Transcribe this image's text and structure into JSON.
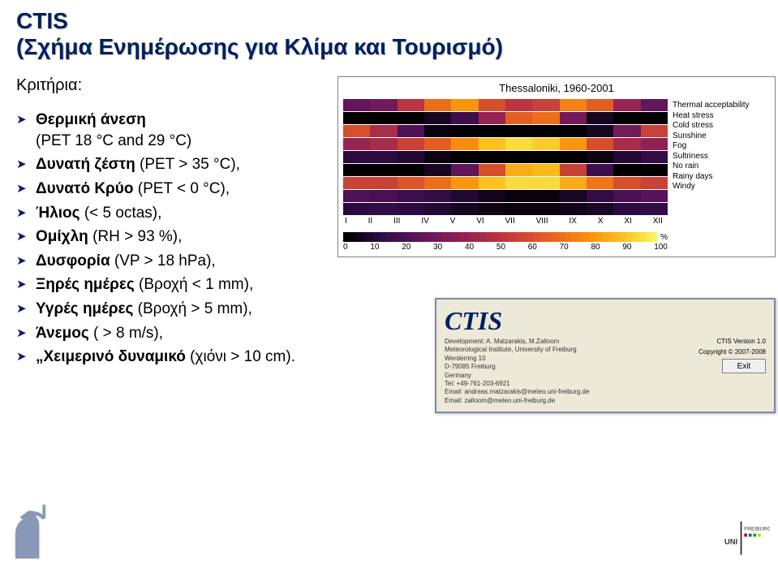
{
  "title": {
    "line1": "CTIS",
    "line2": "(Σχήμα Ενημέρωσης για Κλίμα και Τουρισμό)"
  },
  "criteria_label": "Κριτήρια:",
  "criteria": [
    {
      "html": "<span class='bold'>Θερμική άνεση</span>"
    },
    {
      "html": "(PET 18 °C and 29 °C)"
    },
    {
      "html": "<span class='bold'>Δυνατή ζέστη</span> (PET > 35 °C),"
    },
    {
      "html": "<span class='bold'>Δυνατό Κρύο</span> (PET < 0 °C),"
    },
    {
      "html": "<span class='bold'>Ήλιος</span> (< 5 octas),"
    },
    {
      "html": "<span class='bold'>Ομίχλη</span> (RH > 93 %),"
    },
    {
      "html": "<span class='bold'>Δυσφορία</span> (VP > 18 hPa),"
    },
    {
      "html": "<span class='bold'>Ξηρές ημέρες</span> (Βροχή < 1 mm),"
    },
    {
      "html": "<span class='bold'>Υγρές ημέρες</span> (Βροχή > 5 mm),"
    },
    {
      "html": "<span class='bold'>Άνεμος</span> ( > 8 m/s),"
    },
    {
      "html": "<span class='bold'>„Χειμερινό δυναμικό</span> (χιόνι > 10 cm)."
    }
  ],
  "chart": {
    "title": "Thessaloniki, 1960-2001",
    "x_labels": [
      "I",
      "II",
      "III",
      "IV",
      "V",
      "VI",
      "VII",
      "VIII",
      "IX",
      "X",
      "XI",
      "XII"
    ],
    "legend": [
      "Thermal acceptability",
      "Heat stress",
      "Cold stress",
      "Sunshine",
      "Fog",
      "Sultriness",
      "No rain",
      "Rainy days",
      "Windy"
    ],
    "colorbar_labels": [
      "0",
      "10",
      "20",
      "30",
      "40",
      "50",
      "60",
      "70",
      "80",
      "90",
      "100"
    ],
    "pct_label": "%",
    "palette": {
      "p0": "#000000",
      "p10": "#2b0b3f",
      "p20": "#4f1158",
      "p30": "#731a5a",
      "p40": "#972451",
      "p50": "#b93540",
      "p60": "#d74e2d",
      "p70": "#ed6e1a",
      "p80": "#f9950e",
      "p90": "#fbc21f",
      "p100": "#f8f45c"
    },
    "rows": [
      [
        25,
        30,
        50,
        70,
        80,
        60,
        50,
        55,
        75,
        65,
        40,
        25
      ],
      [
        0,
        0,
        0,
        5,
        15,
        40,
        65,
        70,
        30,
        5,
        0,
        0
      ],
      [
        60,
        45,
        20,
        2,
        0,
        0,
        0,
        0,
        0,
        5,
        30,
        55
      ],
      [
        40,
        45,
        55,
        65,
        78,
        90,
        95,
        92,
        80,
        60,
        45,
        38
      ],
      [
        10,
        10,
        8,
        3,
        0,
        0,
        0,
        0,
        0,
        3,
        8,
        12
      ],
      [
        0,
        0,
        0,
        5,
        25,
        60,
        85,
        88,
        55,
        15,
        0,
        0
      ],
      [
        55,
        55,
        62,
        70,
        80,
        90,
        95,
        95,
        85,
        72,
        60,
        55
      ],
      [
        20,
        18,
        15,
        12,
        8,
        4,
        2,
        2,
        6,
        12,
        18,
        22
      ],
      [
        10,
        12,
        10,
        8,
        5,
        3,
        2,
        2,
        4,
        6,
        10,
        12
      ]
    ]
  },
  "ctis_app": {
    "logo": "CTIS",
    "version": "CTIS Version 1.0",
    "copyright": "Copyright © 2007-2008",
    "exit": "Exit",
    "meta_lines": [
      "Development:  A. Matzarakis, M.Zalloom",
      "Meteorological Institute, University of Freiburg",
      "Werderring 10",
      "D-79085 Freiburg",
      "Germany",
      "Tel: +49-761-203-6921",
      "Email: andreas.matzarakis@meteo.uni-freiburg.de",
      "Email: zalloom@meteo.uni-freiburg.de"
    ]
  }
}
